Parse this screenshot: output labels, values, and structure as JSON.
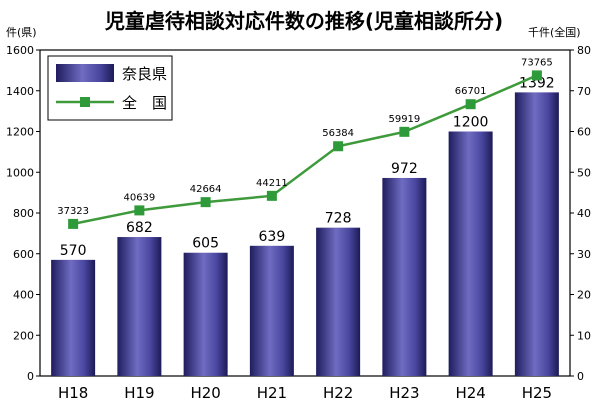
{
  "chart_data": {
    "type": "bar",
    "title": "児童虐待相談対応件数の推移(児童相談所分)",
    "left_axis_label": "件(県)",
    "right_axis_label": "千件(全国)",
    "categories": [
      "H18",
      "H19",
      "H20",
      "H21",
      "H22",
      "H23",
      "H24",
      "H25"
    ],
    "ylim_left": [
      0,
      1600
    ],
    "yticks_left": [
      0,
      200,
      400,
      600,
      800,
      1000,
      1200,
      1400,
      1600
    ],
    "ylim_right": [
      0,
      80
    ],
    "yticks_right": [
      0,
      10,
      20,
      30,
      40,
      50,
      60,
      70,
      80
    ],
    "grid": false,
    "legend_position": "top-left",
    "series": [
      {
        "name": "奈良県",
        "type": "bar",
        "axis": "left",
        "color": "#3b3990",
        "values": [
          570,
          682,
          605,
          639,
          728,
          972,
          1200,
          1392
        ],
        "labels": [
          "570",
          "682",
          "605",
          "639",
          "728",
          "972",
          "1200",
          "1392"
        ]
      },
      {
        "name": "全　国",
        "type": "line",
        "axis": "right",
        "color": "#3e9a3a",
        "marker_color": "#2f9a3a",
        "values": [
          37.323,
          40.639,
          42.664,
          44.211,
          56.384,
          59.919,
          66.701,
          73.765
        ],
        "labels": [
          "37323",
          "40639",
          "42664",
          "44211",
          "56384",
          "59919",
          "66701",
          "73765"
        ]
      }
    ]
  }
}
